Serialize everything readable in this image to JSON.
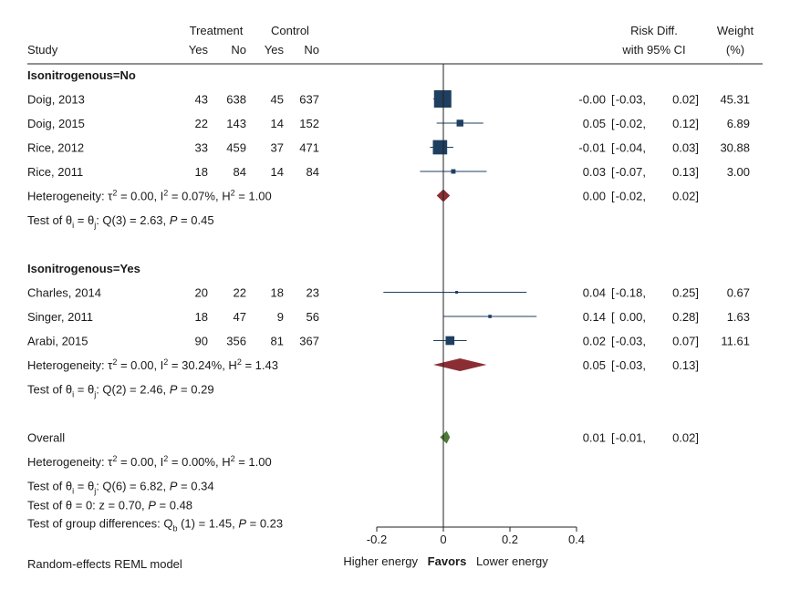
{
  "header": {
    "study": "Study",
    "treatment": "Treatment",
    "control": "Control",
    "yes": "Yes",
    "no": "No",
    "effect1": "Risk Diff.",
    "effect2": "with 95% CI",
    "weight1": "Weight",
    "weight2": "(%)"
  },
  "footer": {
    "model": "Random-effects REML model",
    "favors_left": "Higher energy",
    "favors": "Favors",
    "favors_right": "Lower energy"
  },
  "colors": {
    "marker": "#1f3f60",
    "ci_line": "#1f3f60",
    "subgroup_diamond": "#8b2e34",
    "overall_diamond": "#4f7a3a",
    "text": "#1a1a1a"
  },
  "chart_data": {
    "type": "forest",
    "measure": "Risk Diff.",
    "xlim": [
      -0.2,
      0.4
    ],
    "xticks": [
      -0.2,
      0,
      0.2,
      0.4
    ],
    "xtick_labels": [
      "-0.2",
      "0",
      "0.2",
      "0.4"
    ],
    "reference_line": 0,
    "groups": [
      {
        "label": "Isonitrogenous=No",
        "studies": [
          {
            "study": "Doig, 2013",
            "t_yes": "43",
            "t_no": "638",
            "c_yes": "45",
            "c_no": "637",
            "est": -0.002,
            "lo": -0.03,
            "hi": 0.02,
            "est_text": "-0.00",
            "lo_text": "-0.03",
            "hi_text": "0.02",
            "weight": 45.31,
            "weight_text": "45.31"
          },
          {
            "study": "Doig, 2015",
            "t_yes": "22",
            "t_no": "143",
            "c_yes": "14",
            "c_no": "152",
            "est": 0.05,
            "lo": -0.02,
            "hi": 0.12,
            "est_text": "0.05",
            "lo_text": "-0.02",
            "hi_text": "0.12",
            "weight": 6.89,
            "weight_text": "6.89"
          },
          {
            "study": "Rice, 2012",
            "t_yes": "33",
            "t_no": "459",
            "c_yes": "37",
            "c_no": "471",
            "est": -0.01,
            "lo": -0.04,
            "hi": 0.03,
            "est_text": "-0.01",
            "lo_text": "-0.04",
            "hi_text": "0.03",
            "weight": 30.88,
            "weight_text": "30.88"
          },
          {
            "study": "Rice, 2011",
            "t_yes": "18",
            "t_no": "84",
            "c_yes": "14",
            "c_no": "84",
            "est": 0.03,
            "lo": -0.07,
            "hi": 0.13,
            "est_text": "0.03",
            "lo_text": "-0.07",
            "hi_text": "0.13",
            "weight": 3.0,
            "weight_text": "3.00"
          }
        ],
        "pooled": {
          "est": 0.0,
          "lo": -0.02,
          "hi": 0.02,
          "est_text": "0.00",
          "lo_text": "-0.02",
          "hi_text": "0.02"
        },
        "het": {
          "tau2": "0.00",
          "i2": "0.07%",
          "h2": "1.00"
        },
        "test": {
          "df": "3",
          "q": "2.63",
          "p": "0.45"
        }
      },
      {
        "label": "Isonitrogenous=Yes",
        "studies": [
          {
            "study": "Charles, 2014",
            "t_yes": "20",
            "t_no": "22",
            "c_yes": "18",
            "c_no": "23",
            "est": 0.04,
            "lo": -0.18,
            "hi": 0.25,
            "est_text": "0.04",
            "lo_text": "-0.18",
            "hi_text": "0.25",
            "weight": 0.67,
            "weight_text": "0.67"
          },
          {
            "study": "Singer, 2011",
            "t_yes": "18",
            "t_no": "47",
            "c_yes": "9",
            "c_no": "56",
            "est": 0.14,
            "lo": 0.0,
            "hi": 0.28,
            "est_text": "0.14",
            "lo_text": "0.00",
            "hi_text": "0.28",
            "weight": 1.63,
            "weight_text": "1.63"
          },
          {
            "study": "Arabi, 2015",
            "t_yes": "90",
            "t_no": "356",
            "c_yes": "81",
            "c_no": "367",
            "est": 0.02,
            "lo": -0.03,
            "hi": 0.07,
            "est_text": "0.02",
            "lo_text": "-0.03",
            "hi_text": "0.07",
            "weight": 11.61,
            "weight_text": "11.61"
          }
        ],
        "pooled": {
          "est": 0.05,
          "lo": -0.03,
          "hi": 0.13,
          "est_text": "0.05",
          "lo_text": "-0.03",
          "hi_text": "0.13"
        },
        "het": {
          "tau2": "0.00",
          "i2": "30.24%",
          "h2": "1.43"
        },
        "test": {
          "df": "2",
          "q": "2.46",
          "p": "0.29"
        }
      }
    ],
    "overall": {
      "label": "Overall",
      "est": 0.01,
      "lo": -0.01,
      "hi": 0.02,
      "est_text": "0.01",
      "lo_text": "-0.01",
      "hi_text": "0.02",
      "het": {
        "tau2": "0.00",
        "i2": "0.00%",
        "h2": "1.00"
      },
      "test_eq": {
        "df": "6",
        "q": "6.82",
        "p": "0.34"
      },
      "test_zero": {
        "z": "0.70",
        "p": "0.48"
      },
      "test_groups": {
        "df": "1",
        "q": "1.45",
        "p": "0.23"
      }
    }
  }
}
